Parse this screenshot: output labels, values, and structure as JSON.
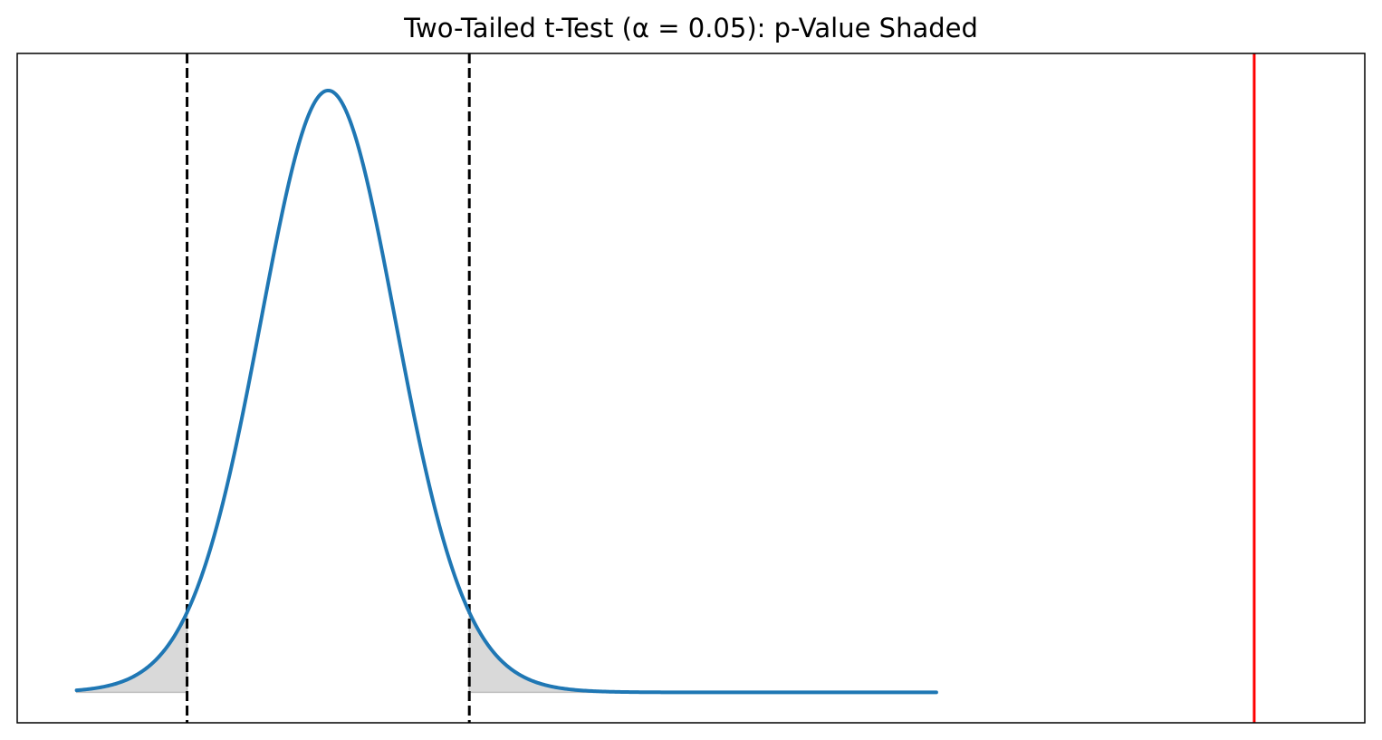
{
  "chart_data": {
    "type": "line",
    "title": "Two-Tailed t-Test (α = 0.05): p-Value Shaded",
    "xlabel": "",
    "ylabel": "",
    "xlim": [
      -4.5,
      15.0
    ],
    "ylim": [
      -0.02,
      0.42
    ],
    "grid": false,
    "axes_ticks": false,
    "distribution": {
      "name": "t",
      "df": 30,
      "x_range": [
        -3.64,
        8.8
      ],
      "color": "#1f77b4"
    },
    "critical_values": {
      "lower": -2.042,
      "upper": 2.042,
      "color": "#000000",
      "style": "dashed"
    },
    "shaded_regions": [
      {
        "from": -3.64,
        "to": -2.042,
        "color": "#d9d9d9"
      },
      {
        "from": 2.042,
        "to": 8.8,
        "color": "#d9d9d9"
      }
    ],
    "test_statistic": {
      "value": 13.4,
      "color": "#ff0000",
      "style": "solid"
    }
  }
}
